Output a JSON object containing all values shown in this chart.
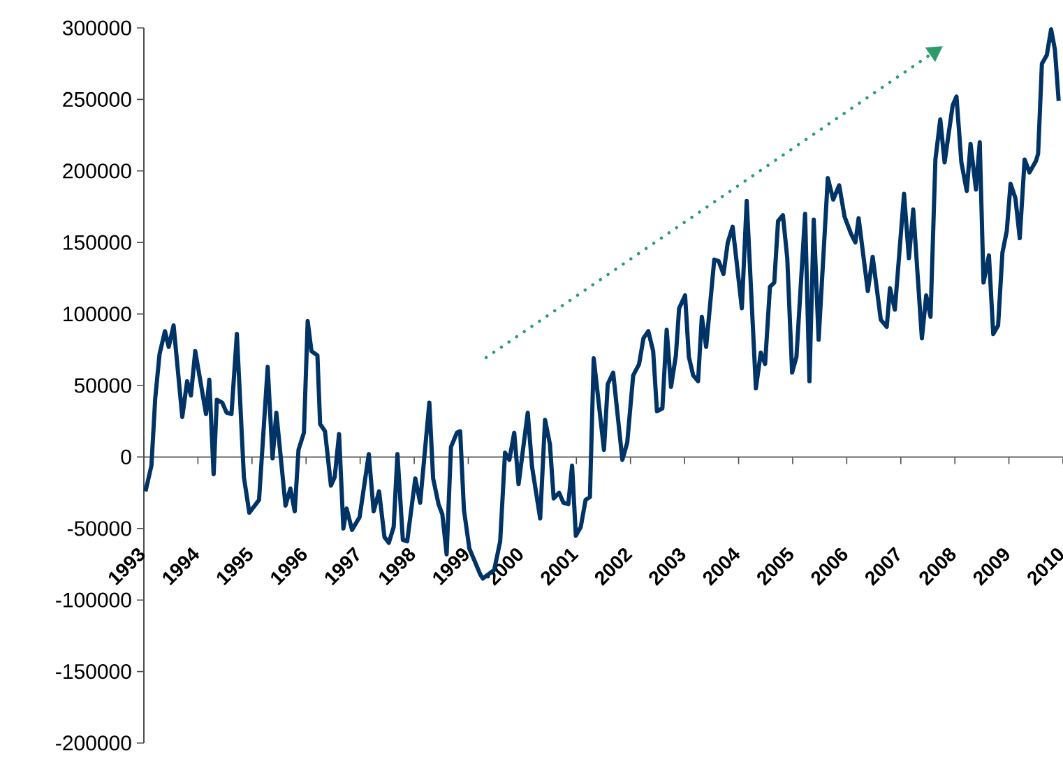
{
  "chart_data": {
    "type": "line",
    "color": "#003366",
    "marker": "none",
    "line_style": "solid",
    "x": [
      1993.03,
      1993.14,
      1993.21,
      1993.29,
      1993.39,
      1993.46,
      1993.55,
      1993.71,
      1993.8,
      1993.87,
      1993.95,
      1994.15,
      1994.21,
      1994.29,
      1994.35,
      1994.45,
      1994.53,
      1994.62,
      1994.72,
      1994.85,
      1994.95,
      1995.13,
      1995.29,
      1995.38,
      1995.45,
      1995.62,
      1995.71,
      1995.79,
      1995.86,
      1995.96,
      1996.03,
      1996.1,
      1996.21,
      1996.26,
      1996.35,
      1996.46,
      1996.53,
      1996.61,
      1996.69,
      1996.75,
      1996.85,
      1996.99,
      1997.16,
      1997.25,
      1997.35,
      1997.45,
      1997.53,
      1997.62,
      1997.69,
      1997.79,
      1997.87,
      1998.02,
      1998.11,
      1998.28,
      1998.35,
      1998.45,
      1998.52,
      1998.6,
      1998.68,
      1998.79,
      1998.85,
      1998.92,
      1999.02,
      1999.11,
      1999.22,
      1999.27,
      1999.48,
      1999.59,
      1999.68,
      1999.76,
      1999.85,
      1999.93,
      2000.1,
      2000.18,
      2000.33,
      2000.42,
      2000.51,
      2000.58,
      2000.68,
      2000.76,
      2000.85,
      2000.92,
      2000.99,
      2001.08,
      2001.17,
      2001.25,
      2001.32,
      2001.51,
      2001.58,
      2001.68,
      2001.85,
      2001.94,
      2002.05,
      2002.16,
      2002.24,
      2002.33,
      2002.42,
      2002.49,
      2002.59,
      2002.67,
      2002.75,
      2002.84,
      2002.9,
      2003.01,
      2003.08,
      2003.16,
      2003.25,
      2003.32,
      2003.4,
      2003.55,
      2003.63,
      2003.72,
      2003.8,
      2003.89,
      2004.06,
      2004.15,
      2004.32,
      2004.41,
      2004.49,
      2004.58,
      2004.66,
      2004.73,
      2004.82,
      2004.9,
      2004.99,
      2005.07,
      2005.23,
      2005.31,
      2005.39,
      2005.48,
      2005.65,
      2005.75,
      2005.86,
      2005.96,
      2006.08,
      2006.16,
      2006.22,
      2006.39,
      2006.48,
      2006.63,
      2006.74,
      2006.8,
      2006.89,
      2007.06,
      2007.15,
      2007.23,
      2007.39,
      2007.47,
      2007.55,
      2007.64,
      2007.73,
      2007.81,
      2007.96,
      2008.03,
      2008.12,
      2008.22,
      2008.29,
      2008.39,
      2008.46,
      2008.53,
      2008.63,
      2008.71,
      2008.8,
      2008.88,
      2008.96,
      2009.03,
      2009.12,
      2009.2,
      2009.29,
      2009.38,
      2009.5,
      2009.54,
      2009.61,
      2009.7,
      2009.78,
      2009.85,
      2009.92
    ],
    "values": [
      -24000,
      -6000,
      41000,
      72000,
      88000,
      77000,
      92000,
      28000,
      53000,
      43000,
      74000,
      30000,
      54000,
      -12000,
      40000,
      38000,
      31000,
      30000,
      86000,
      -14000,
      -39000,
      -30000,
      63000,
      -1000,
      31000,
      -34000,
      -22000,
      -38000,
      5000,
      17000,
      95000,
      74000,
      71000,
      23000,
      18000,
      -20000,
      -14000,
      16000,
      -50000,
      -36000,
      -51000,
      -42000,
      2000,
      -38000,
      -24000,
      -56000,
      -60000,
      -49000,
      2000,
      -58000,
      -59000,
      -15000,
      -32000,
      38000,
      -15000,
      -33000,
      -40000,
      -68000,
      7000,
      17000,
      18000,
      -37000,
      -64000,
      -72000,
      -82000,
      -85000,
      -79000,
      -59000,
      3000,
      -2000,
      17000,
      -19000,
      31000,
      -7000,
      -43000,
      26000,
      9000,
      -29000,
      -25000,
      -32000,
      -33000,
      -6000,
      -55000,
      -49000,
      -30000,
      -28000,
      69000,
      5000,
      51000,
      59000,
      -2000,
      10000,
      57000,
      65000,
      83000,
      88000,
      74000,
      32000,
      34000,
      89000,
      49000,
      71000,
      104000,
      113000,
      70000,
      57000,
      53000,
      98000,
      77000,
      138000,
      137000,
      128000,
      150000,
      161000,
      104000,
      179000,
      48000,
      73000,
      65000,
      119000,
      122000,
      165000,
      169000,
      139000,
      59000,
      70000,
      170000,
      53000,
      166000,
      82000,
      195000,
      180000,
      190000,
      168000,
      156000,
      150000,
      167000,
      116000,
      140000,
      96000,
      91000,
      118000,
      103000,
      184000,
      139000,
      173000,
      83000,
      113000,
      98000,
      208000,
      236000,
      206000,
      246000,
      252000,
      206000,
      186000,
      219000,
      187000,
      220000,
      122000,
      141000,
      86000,
      92000,
      143000,
      158000,
      191000,
      181000,
      153000,
      208000,
      199000,
      207000,
      212000,
      275000,
      281000,
      299000,
      285000,
      249000
    ],
    "xlim": [
      1993,
      2010
    ],
    "xticks": [
      1993,
      1994,
      1995,
      1996,
      1997,
      1998,
      1999,
      2000,
      2001,
      2002,
      2003,
      2004,
      2005,
      2006,
      2007,
      2008,
      2009,
      2010
    ],
    "ylim": [
      -200000,
      300000
    ],
    "yticks": [
      -200000,
      -150000,
      -100000,
      -50000,
      0,
      50000,
      100000,
      150000,
      200000,
      250000,
      300000
    ]
  }
}
